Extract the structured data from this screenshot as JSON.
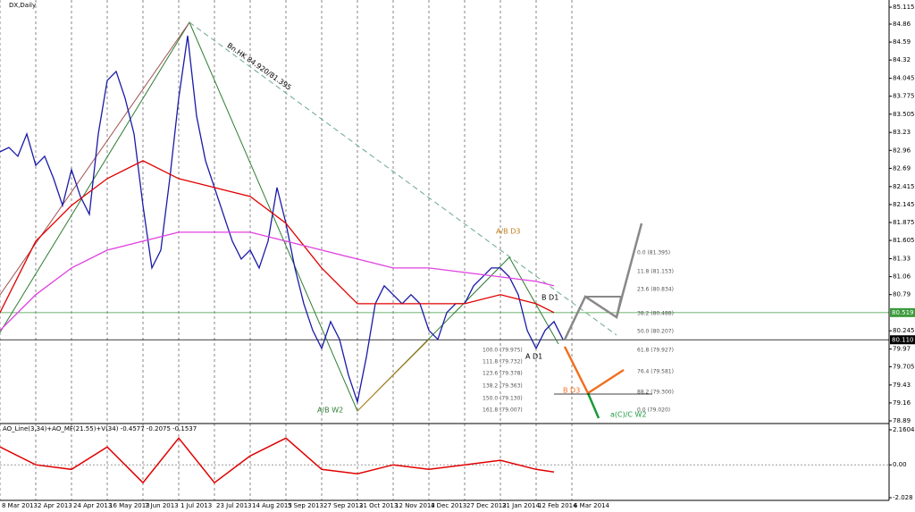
{
  "chart_data": {
    "type": "line",
    "title": "DX,Daily",
    "indicator_label": "AO_Line(3,34)+AO_MF(21.55)+V(34) -0.4577 -0.2075 -0.1537",
    "xlim": [
      0,
      398
    ],
    "xticks": [
      {
        "value": 0,
        "label": "8 Mar 2013"
      },
      {
        "value": 16,
        "label": "2 Apr 2013"
      },
      {
        "value": 32,
        "label": "24 Apr 2013"
      },
      {
        "value": 48,
        "label": "16 May 2013"
      },
      {
        "value": 64,
        "label": "7 Jun 2013"
      },
      {
        "value": 80,
        "label": "1 Jul 2013"
      },
      {
        "value": 96,
        "label": "23 Jul 2013"
      },
      {
        "value": 112,
        "label": "14 Aug 2013"
      },
      {
        "value": 128,
        "label": "5 Sep 2013"
      },
      {
        "value": 144,
        "label": "27 Sep 2013"
      },
      {
        "value": 160,
        "label": "21 Oct 2013"
      },
      {
        "value": 176,
        "label": "12 Nov 2013"
      },
      {
        "value": 192,
        "label": "4 Dec 2013"
      },
      {
        "value": 208,
        "label": "27 Dec 2013"
      },
      {
        "value": 224,
        "label": "21 Jan 2014"
      },
      {
        "value": 240,
        "label": "12 Feb 2014"
      },
      {
        "value": 256,
        "label": "6 Mar 2014"
      }
    ],
    "ylim": [
      78.863,
      85.223
    ],
    "yticks": [
      85.115,
      84.86,
      84.59,
      84.32,
      84.045,
      83.775,
      83.505,
      83.23,
      82.96,
      82.69,
      82.415,
      82.145,
      81.875,
      81.605,
      81.33,
      81.06,
      80.79,
      80.245,
      79.97,
      79.705,
      79.43,
      79.16,
      78.89
    ],
    "y2lim": [
      -2.193,
      2.436
    ],
    "y2ticks": [
      2.1604,
      {
        "value": 0,
        "label": "0.00"
      },
      -2.028
    ],
    "grid": true,
    "hlines": [
      {
        "value": 80.519,
        "label": "80.519",
        "color": "#3c9a3c"
      },
      {
        "value": 80.11,
        "label": "80.110",
        "color": "#000000"
      }
    ],
    "series": [
      {
        "color": "#1a1aa8",
        "x": [
          0,
          4,
          8,
          12,
          16,
          20,
          24,
          28,
          32,
          36,
          40,
          44,
          48,
          52,
          56,
          60,
          64,
          68,
          72,
          76,
          80,
          84,
          88,
          92,
          96,
          100,
          104,
          108,
          112,
          116,
          120,
          124,
          128,
          132,
          136,
          140,
          144,
          148,
          152,
          156,
          160,
          164,
          168,
          172,
          176,
          180,
          184,
          188,
          192,
          196,
          200,
          204,
          208,
          212,
          216,
          220,
          224,
          228,
          232,
          236,
          240,
          244,
          248,
          252
        ],
        "values": [
          82.938,
          83.005,
          82.871,
          83.207,
          82.736,
          82.871,
          82.535,
          82.132,
          82.669,
          82.266,
          81.997,
          83.207,
          84.013,
          84.148,
          83.745,
          83.207,
          82.132,
          81.191,
          81.46,
          82.535,
          83.745,
          84.685,
          83.476,
          82.804,
          82.4,
          81.997,
          81.594,
          81.325,
          81.46,
          81.191,
          81.594,
          82.4,
          81.863,
          81.191,
          80.653,
          80.25,
          79.981,
          80.384,
          80.116,
          79.578,
          79.175,
          79.847,
          80.653,
          80.922,
          80.788,
          80.653,
          80.788,
          80.653,
          80.25,
          80.116,
          80.519,
          80.653,
          80.653,
          80.922,
          81.056,
          81.191,
          81.191,
          81.056,
          80.788,
          80.25,
          79.981,
          80.25,
          80.384,
          80.116
        ]
      },
      {
        "color": "#e00000",
        "x": [
          0,
          16,
          32,
          48,
          64,
          80,
          96,
          112,
          128,
          144,
          160,
          176,
          192,
          208,
          224,
          240,
          248
        ],
        "values": [
          80.519,
          81.594,
          82.132,
          82.535,
          82.804,
          82.535,
          82.4,
          82.266,
          81.863,
          81.191,
          80.653,
          80.653,
          80.653,
          80.653,
          80.788,
          80.653,
          80.519
        ]
      },
      {
        "color": "#e040e0",
        "x": [
          0,
          16,
          32,
          48,
          64,
          80,
          96,
          112,
          128,
          144,
          160,
          176,
          192,
          208,
          224,
          240,
          248
        ],
        "values": [
          80.25,
          80.788,
          81.191,
          81.46,
          81.594,
          81.729,
          81.729,
          81.729,
          81.594,
          81.46,
          81.325,
          81.191,
          81.191,
          81.123,
          81.056,
          80.989,
          80.922
        ]
      },
      {
        "color": "#e00000",
        "axis": "y2",
        "x": [
          0,
          16,
          32,
          48,
          64,
          80,
          96,
          112,
          128,
          144,
          160,
          176,
          192,
          208,
          224,
          240,
          248
        ],
        "values": [
          1.1,
          0,
          -0.28,
          1.1,
          -1.1,
          1.65,
          -1.1,
          0.55,
          1.65,
          -0.28,
          -0.55,
          0,
          -0.28,
          0,
          0.28,
          -0.28,
          -0.44
        ]
      }
    ],
    "annotations": [
      "Bn.HK 84.920/81.395",
      "A/B D3",
      "B D1",
      "A D1",
      "A/B W2",
      "B D3",
      "a(C)/C W2"
    ],
    "fib_labels": [
      "0.0 (81.395)",
      "11.8 (81.153)",
      "23.6 (80.834)",
      "38.2 (80.488)",
      "50.0 (80.207)",
      "61.8 (79.927)",
      "76.4 (79.581)",
      "88.2 (79.300)",
      "0.0 (79.020)",
      "100.0 (79.975)",
      "111.8 (79.732)",
      "123.6 (79.378)",
      "138.2 (79.363)",
      "150.0 (79.130)",
      "161.8 (79.007)"
    ]
  }
}
